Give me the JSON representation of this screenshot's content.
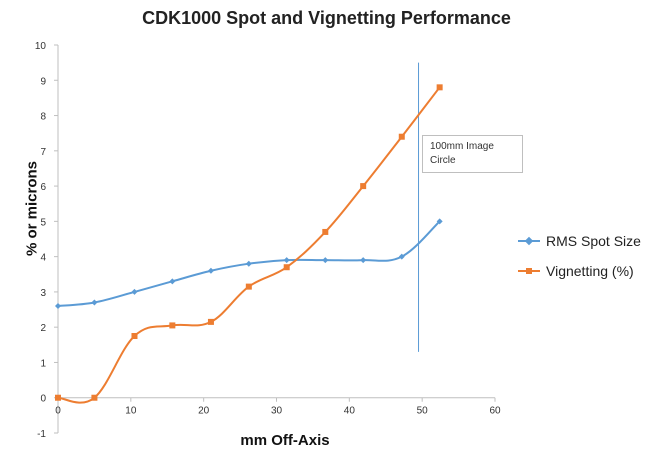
{
  "chart_data": {
    "type": "line",
    "title": "CDK1000 Spot and Vignetting Performance",
    "xlabel": "mm Off-Axis",
    "ylabel": "% or microns",
    "xlim": [
      0,
      60
    ],
    "ylim": [
      -1,
      10
    ],
    "x_ticks": [
      "0",
      "10",
      "20",
      "30",
      "40",
      "50",
      "60"
    ],
    "y_ticks": [
      "-1",
      "0",
      "1",
      "2",
      "3",
      "4",
      "5",
      "6",
      "7",
      "8",
      "9",
      "10"
    ],
    "grid": false,
    "legend_position": "right",
    "series": [
      {
        "name": "RMS Spot Size",
        "color": "#5b9bd5",
        "marker": "diamond",
        "points": [
          {
            "x": 0,
            "y": 2.6
          },
          {
            "x": 5,
            "y": 2.7
          },
          {
            "x": 10.5,
            "y": 3.0
          },
          {
            "x": 15.7,
            "y": 3.3
          },
          {
            "x": 21,
            "y": 3.6
          },
          {
            "x": 26.2,
            "y": 3.8
          },
          {
            "x": 31.4,
            "y": 3.9
          },
          {
            "x": 36.7,
            "y": 3.9
          },
          {
            "x": 41.9,
            "y": 3.9
          },
          {
            "x": 47.2,
            "y": 4.0
          },
          {
            "x": 52.4,
            "y": 5.0
          }
        ]
      },
      {
        "name": "Vignetting (%)",
        "color": "#ed7d31",
        "marker": "square",
        "points": [
          {
            "x": 0,
            "y": 0.0
          },
          {
            "x": 5,
            "y": 0.0
          },
          {
            "x": 10.5,
            "y": 1.75
          },
          {
            "x": 15.7,
            "y": 2.05
          },
          {
            "x": 21,
            "y": 2.15
          },
          {
            "x": 26.2,
            "y": 3.15
          },
          {
            "x": 31.4,
            "y": 3.7
          },
          {
            "x": 36.7,
            "y": 4.7
          },
          {
            "x": 41.9,
            "y": 6.0
          },
          {
            "x": 47.2,
            "y": 7.4
          },
          {
            "x": 52.4,
            "y": 8.8
          }
        ]
      }
    ],
    "reference_line": {
      "x": 49.5,
      "y_from": 1.3,
      "y_to": 9.5,
      "color": "#5b9bd5"
    },
    "annotation": {
      "line1": "100mm Image",
      "line2": "Circle"
    }
  }
}
